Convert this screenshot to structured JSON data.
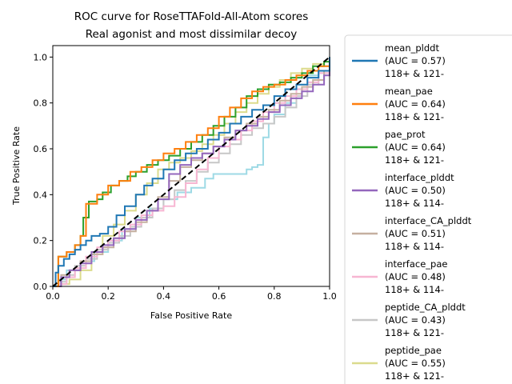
{
  "chart_data": {
    "type": "line",
    "title": "ROC curve for RoseTTAFold-All-Atom scores",
    "subtitle": "Real agonist and most dissimilar decoy",
    "xlabel": "False Positive Rate",
    "ylabel": "True Positive Rate",
    "xlim": [
      0.0,
      1.0
    ],
    "ylim": [
      0.0,
      1.05
    ],
    "xticks": [
      "0.0",
      "0.2",
      "0.4",
      "0.6",
      "0.8",
      "1.0"
    ],
    "yticks": [
      "0.0",
      "0.2",
      "0.4",
      "0.6",
      "0.8",
      "1.0"
    ],
    "grid": false,
    "legend_position": "outside right",
    "series": [
      {
        "name": "mean_plddt",
        "auc_label": "(AUC = 0.57)",
        "group_label": "118+ & 121-",
        "color": "#1f77b4",
        "x": [
          0,
          0.01,
          0.02,
          0.04,
          0.06,
          0.08,
          0.1,
          0.12,
          0.14,
          0.17,
          0.2,
          0.23,
          0.26,
          0.3,
          0.33,
          0.36,
          0.4,
          0.44,
          0.48,
          0.52,
          0.56,
          0.6,
          0.64,
          0.68,
          0.72,
          0.76,
          0.8,
          0.84,
          0.88,
          0.92,
          0.96,
          1.0
        ],
        "y": [
          0,
          0.06,
          0.09,
          0.12,
          0.14,
          0.16,
          0.18,
          0.2,
          0.22,
          0.23,
          0.26,
          0.31,
          0.35,
          0.4,
          0.44,
          0.47,
          0.51,
          0.55,
          0.58,
          0.6,
          0.64,
          0.67,
          0.71,
          0.74,
          0.77,
          0.79,
          0.83,
          0.86,
          0.88,
          0.91,
          0.94,
          1.0
        ]
      },
      {
        "name": "mean_pae",
        "auc_label": "(AUC = 0.64)",
        "group_label": "118+ & 121-",
        "color": "#ff7f0e",
        "x": [
          0,
          0.02,
          0.05,
          0.08,
          0.1,
          0.12,
          0.16,
          0.2,
          0.24,
          0.28,
          0.32,
          0.36,
          0.4,
          0.44,
          0.48,
          0.52,
          0.56,
          0.6,
          0.64,
          0.68,
          0.72,
          0.76,
          0.8,
          0.84,
          0.88,
          0.92,
          0.96,
          1.0
        ],
        "y": [
          0,
          0.13,
          0.15,
          0.18,
          0.22,
          0.36,
          0.4,
          0.44,
          0.46,
          0.5,
          0.52,
          0.55,
          0.58,
          0.6,
          0.63,
          0.66,
          0.69,
          0.74,
          0.78,
          0.82,
          0.85,
          0.87,
          0.88,
          0.9,
          0.92,
          0.94,
          0.96,
          1.0
        ]
      },
      {
        "name": "pae_prot",
        "auc_label": "(AUC = 0.64)",
        "group_label": "118+ & 121-",
        "color": "#2ca02c",
        "x": [
          0,
          0.02,
          0.05,
          0.08,
          0.1,
          0.11,
          0.13,
          0.16,
          0.18,
          0.21,
          0.24,
          0.27,
          0.3,
          0.34,
          0.38,
          0.42,
          0.46,
          0.5,
          0.54,
          0.58,
          0.62,
          0.66,
          0.7,
          0.74,
          0.78,
          0.82,
          0.86,
          0.9,
          0.94,
          0.98,
          1.0
        ],
        "y": [
          0,
          0.13,
          0.15,
          0.18,
          0.22,
          0.3,
          0.37,
          0.38,
          0.41,
          0.44,
          0.46,
          0.48,
          0.5,
          0.53,
          0.55,
          0.57,
          0.6,
          0.63,
          0.66,
          0.7,
          0.74,
          0.78,
          0.83,
          0.86,
          0.88,
          0.89,
          0.91,
          0.93,
          0.96,
          0.98,
          1.0
        ]
      },
      {
        "name": "interface_plddt",
        "auc_label": "(AUC = 0.50)",
        "group_label": "118+ & 114-",
        "color": "#9467bd",
        "x": [
          0,
          0.03,
          0.06,
          0.1,
          0.14,
          0.18,
          0.22,
          0.26,
          0.3,
          0.34,
          0.38,
          0.42,
          0.46,
          0.5,
          0.54,
          0.58,
          0.62,
          0.66,
          0.7,
          0.74,
          0.78,
          0.82,
          0.86,
          0.9,
          0.94,
          0.98,
          1.0
        ],
        "y": [
          0,
          0.04,
          0.07,
          0.1,
          0.15,
          0.18,
          0.21,
          0.25,
          0.29,
          0.33,
          0.38,
          0.49,
          0.53,
          0.56,
          0.58,
          0.61,
          0.64,
          0.68,
          0.7,
          0.73,
          0.76,
          0.79,
          0.82,
          0.85,
          0.88,
          0.92,
          0.97
        ]
      },
      {
        "name": "interface_CA_plddt",
        "auc_label": "(AUC = 0.51)",
        "group_label": "118+ & 114-",
        "color": "#c5b0a0",
        "x": [
          0,
          0.03,
          0.06,
          0.1,
          0.14,
          0.18,
          0.22,
          0.26,
          0.3,
          0.34,
          0.38,
          0.42,
          0.46,
          0.5,
          0.54,
          0.58,
          0.62,
          0.66,
          0.7,
          0.74,
          0.78,
          0.82,
          0.86,
          0.9,
          0.94,
          0.98,
          1.0
        ],
        "y": [
          0,
          0.05,
          0.07,
          0.11,
          0.14,
          0.17,
          0.21,
          0.24,
          0.28,
          0.33,
          0.39,
          0.46,
          0.52,
          0.55,
          0.58,
          0.61,
          0.65,
          0.68,
          0.71,
          0.74,
          0.77,
          0.81,
          0.84,
          0.87,
          0.9,
          0.94,
          0.98
        ]
      },
      {
        "name": "interface_pae",
        "auc_label": "(AUC = 0.48)",
        "group_label": "118+ & 114-",
        "color": "#f7b6d2",
        "x": [
          0,
          0.02,
          0.05,
          0.08,
          0.12,
          0.16,
          0.2,
          0.24,
          0.28,
          0.32,
          0.36,
          0.4,
          0.44,
          0.48,
          0.52,
          0.56,
          0.6,
          0.64,
          0.68,
          0.72,
          0.76,
          0.8,
          0.84,
          0.88,
          0.92,
          0.96,
          1.0
        ],
        "y": [
          0,
          0.01,
          0.04,
          0.08,
          0.13,
          0.17,
          0.2,
          0.24,
          0.27,
          0.31,
          0.33,
          0.35,
          0.39,
          0.45,
          0.51,
          0.56,
          0.61,
          0.64,
          0.68,
          0.72,
          0.76,
          0.8,
          0.83,
          0.86,
          0.89,
          0.93,
          0.97
        ]
      },
      {
        "name": "peptide_CA_plddt",
        "auc_label": "(AUC = 0.43)",
        "group_label": "118+ & 121-",
        "color": "#c7c7c7",
        "x": [
          0,
          0.02,
          0.05,
          0.08,
          0.12,
          0.16,
          0.2,
          0.24,
          0.28,
          0.32,
          0.36,
          0.4,
          0.44,
          0.48,
          0.52,
          0.56,
          0.6,
          0.64,
          0.68,
          0.72,
          0.76,
          0.8,
          0.84,
          0.88,
          0.92,
          0.96,
          1.0
        ],
        "y": [
          0,
          0.02,
          0.05,
          0.09,
          0.12,
          0.16,
          0.19,
          0.22,
          0.26,
          0.3,
          0.34,
          0.38,
          0.42,
          0.46,
          0.5,
          0.54,
          0.58,
          0.62,
          0.66,
          0.69,
          0.71,
          0.74,
          0.78,
          0.83,
          0.88,
          0.93,
          0.97
        ]
      },
      {
        "name": "peptide_pae",
        "auc_label": "(AUC = 0.55)",
        "group_label": "118+ & 121-",
        "color": "#dbdb8d",
        "x": [
          0,
          0.03,
          0.06,
          0.1,
          0.14,
          0.18,
          0.22,
          0.26,
          0.3,
          0.34,
          0.38,
          0.42,
          0.46,
          0.5,
          0.54,
          0.58,
          0.62,
          0.66,
          0.7,
          0.74,
          0.78,
          0.82,
          0.86,
          0.9,
          0.94,
          0.98,
          1.0
        ],
        "y": [
          0,
          0.01,
          0.03,
          0.07,
          0.14,
          0.22,
          0.27,
          0.33,
          0.4,
          0.45,
          0.51,
          0.54,
          0.56,
          0.59,
          0.62,
          0.66,
          0.71,
          0.76,
          0.8,
          0.84,
          0.87,
          0.9,
          0.93,
          0.95,
          0.97,
          0.98,
          1.0
        ]
      },
      {
        "name": "",
        "auc_label": "",
        "group_label": "",
        "color": "#9edae5",
        "hidden_in_legend": true,
        "x": [
          0,
          0.02,
          0.05,
          0.1,
          0.15,
          0.2,
          0.25,
          0.3,
          0.35,
          0.4,
          0.45,
          0.5,
          0.55,
          0.58,
          0.62,
          0.66,
          0.7,
          0.72,
          0.74,
          0.76,
          0.78,
          0.8,
          0.84,
          0.88,
          0.92,
          0.96,
          1.0
        ],
        "y": [
          0,
          0.03,
          0.07,
          0.11,
          0.15,
          0.2,
          0.25,
          0.3,
          0.34,
          0.38,
          0.41,
          0.43,
          0.47,
          0.49,
          0.49,
          0.49,
          0.51,
          0.52,
          0.53,
          0.65,
          0.71,
          0.75,
          0.8,
          0.86,
          0.92,
          0.96,
          1.0
        ]
      }
    ],
    "diagonal": {
      "x": [
        0,
        1
      ],
      "y": [
        0,
        1
      ],
      "color": "#000000",
      "style": "dashed"
    }
  }
}
